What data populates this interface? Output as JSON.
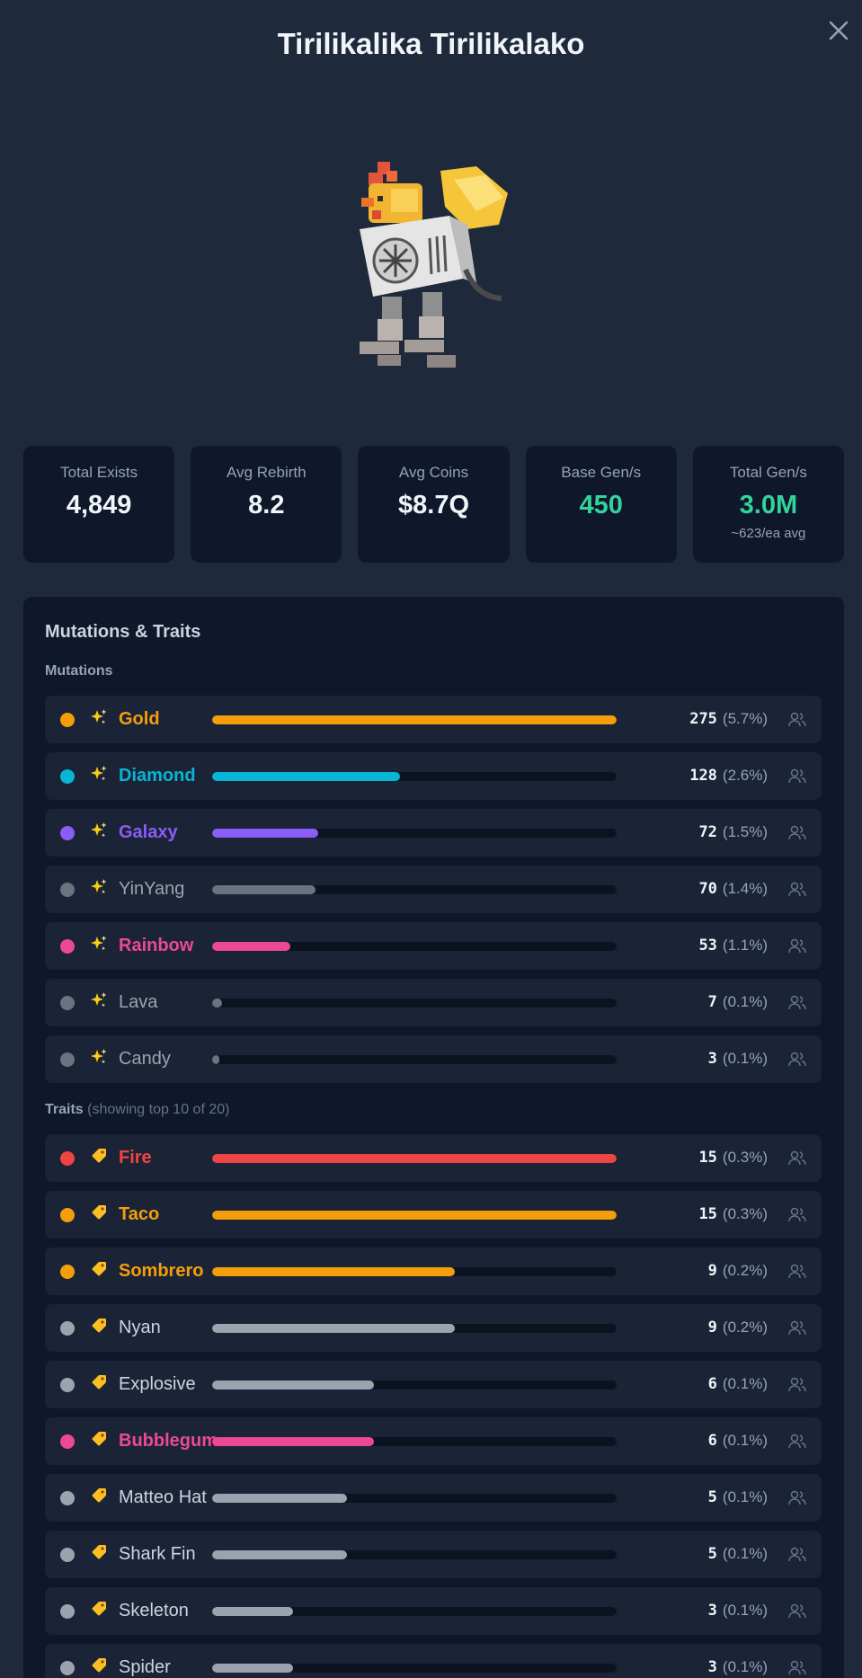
{
  "title": "Tirilikalika Tirilikalako",
  "stats": [
    {
      "label": "Total Exists",
      "value": "4,849",
      "sub": ""
    },
    {
      "label": "Avg Rebirth",
      "value": "8.2",
      "sub": ""
    },
    {
      "label": "Avg Coins",
      "value": "$8.7Q",
      "sub": ""
    },
    {
      "label": "Base Gen/s",
      "value": "450",
      "sub": ""
    },
    {
      "label": "Total Gen/s",
      "value": "3.0M",
      "sub": "~623/ea avg"
    }
  ],
  "panel": {
    "title": "Mutations & Traits",
    "mutations_label": "Mutations",
    "traits_label": "Traits",
    "traits_note": "(showing top 10 of 20)"
  },
  "mutations": [
    {
      "name": "Gold",
      "count": "275",
      "pct": "(5.7%)",
      "ratio": 1.0,
      "color": "#f59e0b",
      "text_color": "#f59e0b",
      "bold": true,
      "icon": "sparkles-icon"
    },
    {
      "name": "Diamond",
      "count": "128",
      "pct": "(2.6%)",
      "ratio": 0.465,
      "color": "#06b6d4",
      "text_color": "#06b6d4",
      "bold": true,
      "icon": "sparkles-icon"
    },
    {
      "name": "Galaxy",
      "count": "72",
      "pct": "(1.5%)",
      "ratio": 0.262,
      "color": "#8b5cf6",
      "text_color": "#8b5cf6",
      "bold": true,
      "icon": "sparkles-icon"
    },
    {
      "name": "YinYang",
      "count": "70",
      "pct": "(1.4%)",
      "ratio": 0.255,
      "color": "#6b7280",
      "text_color": "#9ca3af",
      "bold": false,
      "icon": "sparkles-icon"
    },
    {
      "name": "Rainbow",
      "count": "53",
      "pct": "(1.1%)",
      "ratio": 0.193,
      "color": "#ec4899",
      "text_color": "#ec4899",
      "bold": true,
      "icon": "sparkles-icon"
    },
    {
      "name": "Lava",
      "count": "7",
      "pct": "(0.1%)",
      "ratio": 0.025,
      "color": "#6b7280",
      "text_color": "#9ca3af",
      "bold": false,
      "icon": "sparkles-icon"
    },
    {
      "name": "Candy",
      "count": "3",
      "pct": "(0.1%)",
      "ratio": 0.011,
      "color": "#6b7280",
      "text_color": "#9ca3af",
      "bold": false,
      "icon": "sparkles-icon"
    }
  ],
  "traits": [
    {
      "name": "Fire",
      "count": "15",
      "pct": "(0.3%)",
      "ratio": 1.0,
      "color": "#ef4444",
      "text_color": "#ef4444",
      "bold": true,
      "icon": "tag-icon"
    },
    {
      "name": "Taco",
      "count": "15",
      "pct": "(0.3%)",
      "ratio": 1.0,
      "color": "#f59e0b",
      "text_color": "#f59e0b",
      "bold": true,
      "icon": "tag-icon"
    },
    {
      "name": "Sombrero",
      "count": "9",
      "pct": "(0.2%)",
      "ratio": 0.6,
      "color": "#f59e0b",
      "text_color": "#f59e0b",
      "bold": true,
      "icon": "tag-icon"
    },
    {
      "name": "Nyan",
      "count": "9",
      "pct": "(0.2%)",
      "ratio": 0.6,
      "color": "#9ca3af",
      "text_color": "#cbd5e1",
      "bold": false,
      "icon": "tag-icon"
    },
    {
      "name": "Explosive",
      "count": "6",
      "pct": "(0.1%)",
      "ratio": 0.4,
      "color": "#9ca3af",
      "text_color": "#cbd5e1",
      "bold": false,
      "icon": "tag-icon"
    },
    {
      "name": "Bubblegum",
      "count": "6",
      "pct": "(0.1%)",
      "ratio": 0.4,
      "color": "#ec4899",
      "text_color": "#ec4899",
      "bold": true,
      "icon": "tag-icon"
    },
    {
      "name": "Matteo Hat",
      "count": "5",
      "pct": "(0.1%)",
      "ratio": 0.333,
      "color": "#9ca3af",
      "text_color": "#cbd5e1",
      "bold": false,
      "icon": "tag-icon"
    },
    {
      "name": "Shark Fin",
      "count": "5",
      "pct": "(0.1%)",
      "ratio": 0.333,
      "color": "#9ca3af",
      "text_color": "#cbd5e1",
      "bold": false,
      "icon": "tag-icon"
    },
    {
      "name": "Skeleton",
      "count": "3",
      "pct": "(0.1%)",
      "ratio": 0.2,
      "color": "#9ca3af",
      "text_color": "#cbd5e1",
      "bold": false,
      "icon": "tag-icon"
    },
    {
      "name": "Spider",
      "count": "3",
      "pct": "(0.1%)",
      "ratio": 0.2,
      "color": "#9ca3af",
      "text_color": "#cbd5e1",
      "bold": false,
      "icon": "tag-icon"
    }
  ]
}
